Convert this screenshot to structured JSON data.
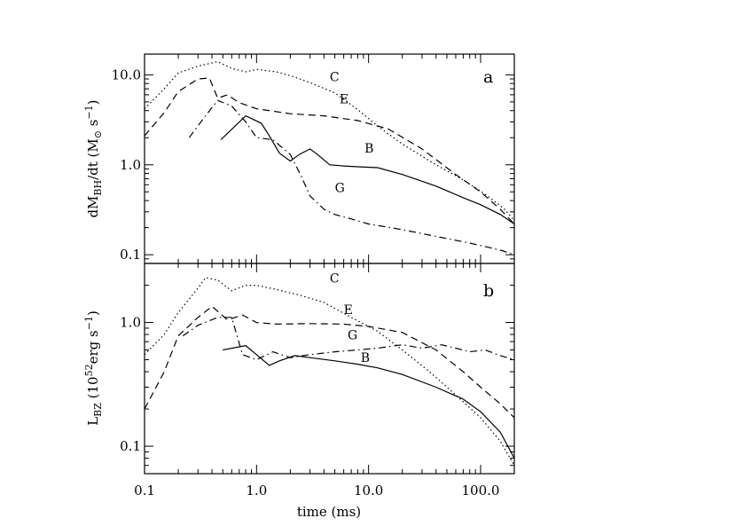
{
  "chart_data": [
    {
      "type": "line",
      "panel_letter": "a",
      "ylabel": "dM_BH/dt (M_⊙ s⁻¹)",
      "ylabel_main": "dM",
      "ylabel_sub": "BH",
      "ylabel_rest": "/dt  (M",
      "ylabel_sun": "⊙",
      "ylabel_unit": " s",
      "ylabel_exp": "−1",
      "ylabel_close": ")",
      "xscale": "log",
      "yscale": "log",
      "xlim": [
        0.1,
        200
      ],
      "ylim": [
        0.08,
        17
      ],
      "yticks": [
        0.1,
        1.0,
        10.0
      ],
      "ytick_labels": [
        "0.1",
        "1.0",
        "10.0"
      ],
      "series": [
        {
          "name": "C",
          "style": "dotted",
          "x": [
            0.1,
            0.15,
            0.2,
            0.3,
            0.45,
            0.6,
            0.8,
            1.0,
            1.5,
            2,
            3,
            5,
            8,
            12,
            20,
            40,
            70,
            110,
            160,
            200
          ],
          "y": [
            4.2,
            7,
            10.5,
            12.5,
            14,
            11.8,
            10.8,
            11.5,
            10.8,
            9.8,
            8.2,
            6.3,
            4.1,
            2.7,
            1.7,
            1.0,
            0.68,
            0.47,
            0.33,
            0.24
          ],
          "label_pos": [
            4.5,
            8.5
          ]
        },
        {
          "name": "E",
          "style": "dashed",
          "x": [
            0.1,
            0.15,
            0.2,
            0.3,
            0.38,
            0.45,
            0.55,
            0.7,
            1.0,
            2,
            4,
            8,
            15,
            30,
            60,
            100,
            150,
            200
          ],
          "y": [
            2.1,
            3.8,
            6.5,
            9.0,
            9.2,
            5.5,
            6.0,
            4.9,
            4.2,
            3.7,
            3.5,
            3.1,
            2.5,
            1.5,
            0.78,
            0.5,
            0.32,
            0.22
          ],
          "label_pos": [
            5.5,
            4.8
          ]
        },
        {
          "name": "B",
          "style": "solid",
          "x": [
            0.48,
            0.8,
            1.1,
            1.3,
            1.6,
            2.0,
            2.4,
            3.0,
            3.5,
            4.5,
            6,
            8,
            12,
            20,
            40,
            70,
            100,
            150,
            200
          ],
          "y": [
            1.9,
            3.5,
            2.9,
            2.1,
            1.35,
            1.1,
            1.3,
            1.5,
            1.3,
            1.0,
            0.97,
            0.95,
            0.93,
            0.78,
            0.58,
            0.43,
            0.36,
            0.28,
            0.22
          ],
          "label_pos": [
            9.2,
            1.37
          ]
        },
        {
          "name": "G",
          "style": "dashdot",
          "x": [
            0.25,
            0.35,
            0.45,
            0.6,
            0.8,
            1.0,
            1.4,
            2.0,
            2.5,
            3.0,
            4,
            5,
            7,
            10,
            20,
            40,
            80,
            120,
            160,
            200
          ],
          "y": [
            2.0,
            3.5,
            5.2,
            4.5,
            3.0,
            2.0,
            1.9,
            1.3,
            0.75,
            0.45,
            0.32,
            0.28,
            0.25,
            0.22,
            0.19,
            0.16,
            0.135,
            0.12,
            0.11,
            0.1
          ],
          "label_pos": [
            5.0,
            0.5
          ]
        }
      ]
    },
    {
      "type": "line",
      "panel_letter": "b",
      "ylabel": "L_BZ (10^52 erg s⁻¹)",
      "ylabel_main": "L",
      "ylabel_sub": "BZ",
      "ylabel_rest": " (10",
      "ylabel_exp52": "52",
      "ylabel_unit": "erg s",
      "ylabel_exp": "−1",
      "ylabel_close": ")",
      "xlabel": "time (ms)",
      "xscale": "log",
      "yscale": "log",
      "xlim": [
        0.1,
        200
      ],
      "ylim": [
        0.06,
        3.0
      ],
      "xticks": [
        0.1,
        1.0,
        10.0,
        100.0
      ],
      "xtick_labels": [
        "0.1",
        "1.0",
        "10.0",
        "100.0"
      ],
      "yticks": [
        0.1,
        1.0
      ],
      "ytick_labels": [
        "0.1",
        "1.0"
      ],
      "series": [
        {
          "name": "C",
          "style": "dotted",
          "x": [
            0.1,
            0.15,
            0.2,
            0.3,
            0.35,
            0.45,
            0.6,
            0.8,
            1.0,
            1.5,
            2.5,
            4,
            7,
            12,
            20,
            35,
            60,
            100,
            150,
            200
          ],
          "y": [
            0.55,
            0.8,
            1.2,
            1.9,
            2.3,
            2.2,
            1.8,
            2.0,
            2.0,
            1.85,
            1.65,
            1.45,
            1.1,
            0.85,
            0.6,
            0.4,
            0.26,
            0.17,
            0.11,
            0.07
          ],
          "label_pos": [
            4.5,
            2.1
          ]
        },
        {
          "name": "E",
          "style": "dashed",
          "x": [
            0.1,
            0.15,
            0.2,
            0.3,
            0.4,
            0.55,
            0.75,
            1.0,
            1.5,
            3,
            6,
            10,
            20,
            40,
            70,
            100,
            150,
            200
          ],
          "y": [
            0.2,
            0.4,
            0.78,
            1.1,
            1.35,
            1.05,
            1.15,
            1.0,
            0.97,
            0.98,
            0.97,
            0.93,
            0.83,
            0.6,
            0.4,
            0.3,
            0.22,
            0.17
          ],
          "label_pos": [
            6.0,
            1.17
          ]
        },
        {
          "name": "G",
          "style": "dashdot",
          "x": [
            0.22,
            0.3,
            0.45,
            0.6,
            0.75,
            1.0,
            1.4,
            2.0,
            3,
            5,
            8,
            12,
            20,
            30,
            45,
            60,
            80,
            110,
            150,
            200
          ],
          "y": [
            0.78,
            0.95,
            1.1,
            1.1,
            0.55,
            0.5,
            0.58,
            0.52,
            0.55,
            0.58,
            0.6,
            0.62,
            0.66,
            0.62,
            0.66,
            0.62,
            0.58,
            0.6,
            0.54,
            0.5
          ],
          "label_pos": [
            6.5,
            0.73
          ]
        },
        {
          "name": "B",
          "style": "solid",
          "x": [
            0.5,
            0.8,
            1.0,
            1.3,
            1.6,
            2.2,
            3,
            5,
            8,
            12,
            20,
            40,
            70,
            100,
            150,
            200
          ],
          "y": [
            0.6,
            0.65,
            0.55,
            0.45,
            0.49,
            0.54,
            0.52,
            0.49,
            0.46,
            0.43,
            0.38,
            0.3,
            0.24,
            0.19,
            0.13,
            0.08
          ],
          "label_pos": [
            8.5,
            0.48
          ]
        }
      ]
    }
  ]
}
